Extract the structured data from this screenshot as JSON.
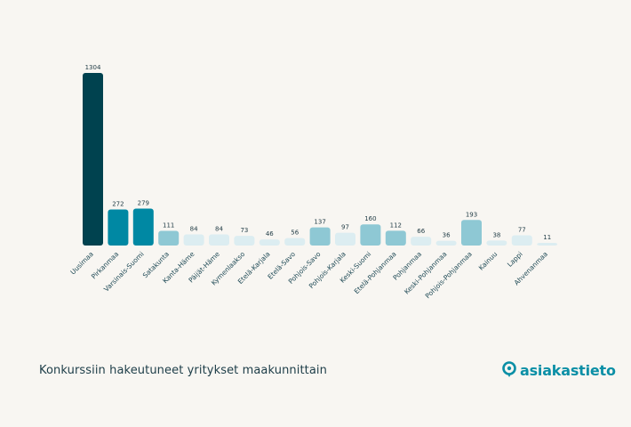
{
  "chart_data": {
    "type": "bar",
    "title": "Konkurssiin hakeutuneet yritykset maakunnittain",
    "xlabel": "",
    "ylabel": "",
    "ylim": [
      0,
      1304
    ],
    "grid": false,
    "categories": [
      "Uusimaa",
      "Pirkanmaa",
      "Varsinais-Suomi",
      "Satakunta",
      "Kanta-Häme",
      "Päijät-Häme",
      "Kymenlaakso",
      "Etelä-Karjala",
      "Etelä-Savo",
      "Pohjois-Savo",
      "Pohjois-Karjala",
      "Keski-Suomi",
      "Etelä-Pohjanmaa",
      "Pohjanmaa",
      "Keski-Pohjanmaa",
      "Pohjois-Pohjanmaa",
      "Kainuu",
      "Lappi",
      "Ahvenanmaa"
    ],
    "values": [
      1304,
      272,
      279,
      111,
      84,
      84,
      73,
      46,
      56,
      137,
      97,
      160,
      112,
      66,
      36,
      193,
      38,
      77,
      11
    ],
    "value_labels": [
      "1304",
      "272",
      "279",
      "111",
      "84",
      "84",
      "73",
      "46",
      "56",
      "137",
      "97",
      "160",
      "112",
      "66",
      "36",
      "193",
      "38",
      "77",
      "11"
    ],
    "colors": {
      "top": "#00424f",
      "high": "#0088a3",
      "mid": "#8ec8d4",
      "low": "#dcedf1"
    }
  },
  "brand": {
    "name": "asiakastieto",
    "icon": "location-pin-icon",
    "color": "#0b8fa6"
  }
}
